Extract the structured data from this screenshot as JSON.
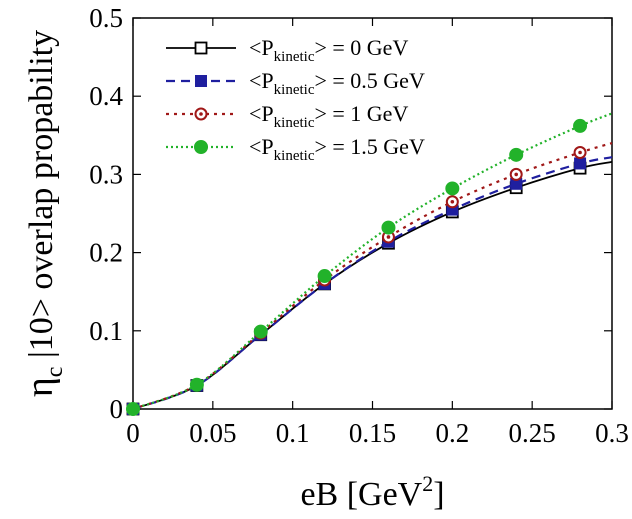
{
  "chart_data": {
    "type": "line",
    "xlabel": "eB [GeV",
    "xlabel_sup": "2",
    "xlabel_close": "]",
    "ylabel_main": "η",
    "ylabel_sub": "c",
    "ylabel_rest": " |10> overlap propability",
    "xlim": [
      0,
      0.3
    ],
    "ylim": [
      0,
      0.5
    ],
    "xticks": [
      "0",
      "0.05",
      "0.1",
      "0.15",
      "0.2",
      "0.25",
      "0.3"
    ],
    "yticks": [
      "0",
      "0.1",
      "0.2",
      "0.3",
      "0.4",
      "0.5"
    ],
    "legend_position": "top-left",
    "x": [
      0,
      0.04,
      0.08,
      0.12,
      0.16,
      0.2,
      0.24,
      0.28
    ],
    "series": [
      {
        "name_pre": "<P",
        "name_sub": "kinetic",
        "name_post": "> = 0 GeV",
        "color": "#000000",
        "dash": "solid",
        "marker": "open-square",
        "values": [
          0,
          0.03,
          0.095,
          0.16,
          0.212,
          0.252,
          0.283,
          0.308
        ],
        "curve_end": 0.316
      },
      {
        "name_pre": "<P",
        "name_sub": "kinetic",
        "name_post": "> = 0.5 GeV",
        "color": "#1f1f9f",
        "dash": "dashed",
        "marker": "filled-square",
        "values": [
          0,
          0.03,
          0.095,
          0.16,
          0.214,
          0.255,
          0.288,
          0.314
        ],
        "curve_end": 0.322
      },
      {
        "name_pre": "<P",
        "name_sub": "kinetic",
        "name_post": "> = 1 GeV",
        "color": "#a01818",
        "dash": "dotted",
        "marker": "open-circle",
        "values": [
          0,
          0.031,
          0.097,
          0.165,
          0.22,
          0.265,
          0.3,
          0.328
        ],
        "curve_end": 0.34
      },
      {
        "name_pre": "<P",
        "name_sub": "kinetic",
        "name_post": "> = 1.5 GeV",
        "color": "#22b22a",
        "dash": "fine-dotted",
        "marker": "filled-circle",
        "values": [
          0,
          0.031,
          0.099,
          0.17,
          0.232,
          0.282,
          0.325,
          0.362
        ],
        "curve_end": 0.378
      }
    ]
  }
}
